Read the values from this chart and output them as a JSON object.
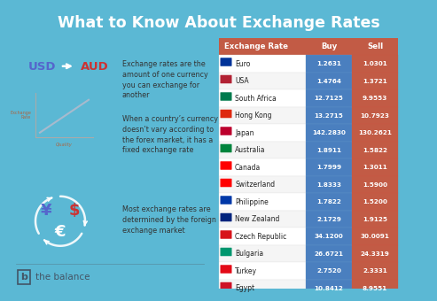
{
  "title": "What to Know About Exchange Rates",
  "bg_color": "#5bb8d4",
  "table_header_color": "#c25b45",
  "table_row_bg_white": "#ffffff",
  "table_row_bg_gray": "#f5f5f5",
  "table_buy_col_color": "#4a7fbf",
  "table_sell_col_color": "#c25b45",
  "header_row": [
    "Exchange Rate",
    "Buy",
    "Sell"
  ],
  "countries": [
    "Euro",
    "USA",
    "South Africa",
    "Hong Kong",
    "Japan",
    "Australia",
    "Canada",
    "Switzerland",
    "Philippine",
    "New Zealand",
    "Czech Republic",
    "Bulgaria",
    "Turkey",
    "Egypt"
  ],
  "buy_values": [
    "1.2631",
    "1.4764",
    "12.7125",
    "13.2715",
    "142.2830",
    "1.8911",
    "1.7999",
    "1.8333",
    "1.7822",
    "2.1729",
    "34.1200",
    "26.6721",
    "2.7520",
    "10.8412"
  ],
  "sell_values": [
    "1.0301",
    "1.3721",
    "9.9553",
    "10.7923",
    "130.2621",
    "1.5822",
    "1.3011",
    "1.5900",
    "1.5200",
    "1.9125",
    "30.0091",
    "24.3319",
    "2.3331",
    "8.9551"
  ],
  "left_text_1": "Exchange rates are the\namount of one currency\nyou can exchange for\nanother",
  "left_text_2": "When a country’s currency\ndoesn’t vary according to\nthe forex market, it has a\nfixed exchange rate",
  "left_text_3": "Most exchange rates are\ndetermined by the foreign\nexchange market",
  "usd_text": "USD",
  "aud_text": "AUD",
  "usd_color": "#5566cc",
  "aud_color": "#cc3333",
  "footer_text": "the balance",
  "title_color": "#ffffff",
  "left_text_color": "#333333",
  "chart_line_color": "#aaaaaa",
  "chart_text_color": "#aa6644",
  "footer_logo_color": "#445566",
  "footer_text_color": "#445566",
  "currency_yen_color": "#5566cc",
  "currency_dollar_color": "#cc3333",
  "currency_euro_color": "#ffffff",
  "arrow_white_color": "#ddeeee"
}
